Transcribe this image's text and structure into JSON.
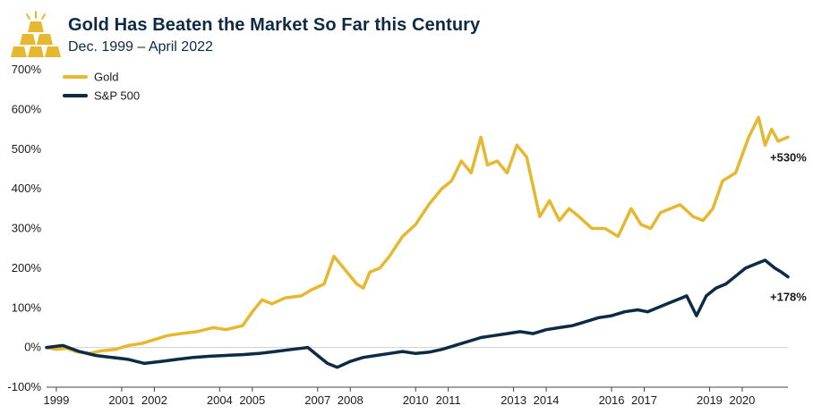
{
  "colors": {
    "gold": "#e6b830",
    "sp500": "#0d2b45",
    "title": "#0d2b45"
  },
  "logo": {
    "icon": "gold-bars-icon"
  },
  "chart_data": {
    "type": "line",
    "title": "Gold Has Beaten the Market So Far this Century",
    "subtitle": "Dec. 1999 – April 2022",
    "xlabel": "",
    "ylabel": "",
    "x_range": [
      1998.7,
      2021.4
    ],
    "ylim": [
      -100,
      700
    ],
    "y_ticks": [
      -100,
      0,
      100,
      200,
      300,
      400,
      500,
      600,
      700
    ],
    "y_tick_labels": [
      "-100%",
      "0%",
      "100%",
      "200%",
      "300%",
      "400%",
      "500%",
      "600%",
      "700%"
    ],
    "x_ticks": [
      {
        "x": 1999,
        "label": "1999"
      },
      {
        "x": 2001,
        "label": "2001"
      },
      {
        "x": 2002,
        "label": "2002"
      },
      {
        "x": 2004,
        "label": "2004"
      },
      {
        "x": 2005,
        "label": "2005"
      },
      {
        "x": 2007,
        "label": "2007"
      },
      {
        "x": 2008,
        "label": "2008"
      },
      {
        "x": 2010,
        "label": "2010"
      },
      {
        "x": 2011,
        "label": "2011"
      },
      {
        "x": 2013,
        "label": "2013"
      },
      {
        "x": 2014,
        "label": "2014"
      },
      {
        "x": 2016,
        "label": "2016"
      },
      {
        "x": 2017,
        "label": "2017"
      },
      {
        "x": 2019,
        "label": "2019"
      },
      {
        "x": 2020,
        "label": "2020"
      }
    ],
    "grid": false,
    "legend_position": "top-left",
    "series": [
      {
        "name": "Gold",
        "color": "#e6b830",
        "end_label": "+530%",
        "points": [
          [
            1998.7,
            0
          ],
          [
            1999.0,
            -5
          ],
          [
            1999.3,
            -2
          ],
          [
            1999.6,
            -10
          ],
          [
            2000.0,
            -15
          ],
          [
            2000.4,
            -8
          ],
          [
            2000.8,
            -5
          ],
          [
            2001.2,
            5
          ],
          [
            2001.6,
            10
          ],
          [
            2002.0,
            20
          ],
          [
            2002.4,
            30
          ],
          [
            2002.8,
            35
          ],
          [
            2003.3,
            40
          ],
          [
            2003.8,
            50
          ],
          [
            2004.2,
            45
          ],
          [
            2004.7,
            55
          ],
          [
            2005.0,
            90
          ],
          [
            2005.3,
            120
          ],
          [
            2005.6,
            110
          ],
          [
            2006.0,
            125
          ],
          [
            2006.5,
            130
          ],
          [
            2006.8,
            145
          ],
          [
            2007.2,
            160
          ],
          [
            2007.5,
            230
          ],
          [
            2007.8,
            200
          ],
          [
            2008.2,
            160
          ],
          [
            2008.4,
            150
          ],
          [
            2008.6,
            190
          ],
          [
            2008.9,
            200
          ],
          [
            2009.2,
            230
          ],
          [
            2009.6,
            280
          ],
          [
            2010.0,
            310
          ],
          [
            2010.4,
            360
          ],
          [
            2010.8,
            400
          ],
          [
            2011.1,
            420
          ],
          [
            2011.4,
            470
          ],
          [
            2011.7,
            440
          ],
          [
            2012.0,
            530
          ],
          [
            2012.2,
            460
          ],
          [
            2012.5,
            470
          ],
          [
            2012.8,
            440
          ],
          [
            2013.1,
            510
          ],
          [
            2013.4,
            480
          ],
          [
            2013.8,
            330
          ],
          [
            2014.1,
            370
          ],
          [
            2014.4,
            320
          ],
          [
            2014.7,
            350
          ],
          [
            2015.0,
            330
          ],
          [
            2015.4,
            300
          ],
          [
            2015.8,
            300
          ],
          [
            2016.2,
            280
          ],
          [
            2016.6,
            350
          ],
          [
            2016.9,
            310
          ],
          [
            2017.2,
            300
          ],
          [
            2017.5,
            340
          ],
          [
            2017.8,
            350
          ],
          [
            2018.1,
            360
          ],
          [
            2018.5,
            330
          ],
          [
            2018.8,
            320
          ],
          [
            2019.1,
            350
          ],
          [
            2019.4,
            420
          ],
          [
            2019.8,
            440
          ],
          [
            2020.2,
            530
          ],
          [
            2020.5,
            580
          ],
          [
            2020.7,
            510
          ],
          [
            2020.9,
            550
          ],
          [
            2021.1,
            520
          ],
          [
            2021.4,
            530
          ]
        ]
      },
      {
        "name": "S&P 500",
        "color": "#0d2b45",
        "end_label": "+178%",
        "points": [
          [
            1998.7,
            0
          ],
          [
            1999.2,
            5
          ],
          [
            1999.7,
            -10
          ],
          [
            2000.2,
            -20
          ],
          [
            2000.7,
            -25
          ],
          [
            2001.2,
            -30
          ],
          [
            2001.7,
            -40
          ],
          [
            2002.2,
            -35
          ],
          [
            2002.7,
            -30
          ],
          [
            2003.2,
            -25
          ],
          [
            2003.7,
            -22
          ],
          [
            2004.2,
            -20
          ],
          [
            2004.7,
            -18
          ],
          [
            2005.2,
            -15
          ],
          [
            2005.7,
            -10
          ],
          [
            2006.2,
            -5
          ],
          [
            2006.7,
            0
          ],
          [
            2007.0,
            -20
          ],
          [
            2007.3,
            -40
          ],
          [
            2007.6,
            -50
          ],
          [
            2008.0,
            -35
          ],
          [
            2008.4,
            -25
          ],
          [
            2008.8,
            -20
          ],
          [
            2009.2,
            -15
          ],
          [
            2009.6,
            -10
          ],
          [
            2010.0,
            -15
          ],
          [
            2010.4,
            -12
          ],
          [
            2010.8,
            -5
          ],
          [
            2011.2,
            5
          ],
          [
            2011.6,
            15
          ],
          [
            2012.0,
            25
          ],
          [
            2012.4,
            30
          ],
          [
            2012.8,
            35
          ],
          [
            2013.2,
            40
          ],
          [
            2013.6,
            35
          ],
          [
            2014.0,
            45
          ],
          [
            2014.4,
            50
          ],
          [
            2014.8,
            55
          ],
          [
            2015.2,
            65
          ],
          [
            2015.6,
            75
          ],
          [
            2016.0,
            80
          ],
          [
            2016.4,
            90
          ],
          [
            2016.8,
            95
          ],
          [
            2017.1,
            90
          ],
          [
            2017.4,
            100
          ],
          [
            2017.7,
            110
          ],
          [
            2018.0,
            120
          ],
          [
            2018.3,
            130
          ],
          [
            2018.6,
            80
          ],
          [
            2018.9,
            130
          ],
          [
            2019.2,
            150
          ],
          [
            2019.5,
            160
          ],
          [
            2019.8,
            180
          ],
          [
            2020.1,
            200
          ],
          [
            2020.4,
            210
          ],
          [
            2020.7,
            220
          ],
          [
            2021.0,
            200
          ],
          [
            2021.2,
            190
          ],
          [
            2021.4,
            178
          ]
        ]
      }
    ]
  }
}
